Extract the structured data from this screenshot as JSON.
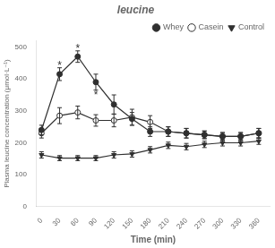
{
  "chart_data": {
    "type": "line",
    "title": "leucine",
    "x_label": "Time (min)",
    "y_label": "Plasma leucine concentration (μmol·L⁻¹)",
    "x": [
      0,
      30,
      60,
      90,
      120,
      150,
      180,
      210,
      240,
      270,
      300,
      330,
      360
    ],
    "series": [
      {
        "name": "Whey",
        "color": "#303030",
        "marker": "circle",
        "values": [
          240,
          415,
          470,
          390,
          320,
          275,
          235,
          235,
          230,
          225,
          220,
          220,
          230
        ],
        "errors": [
          15,
          20,
          18,
          25,
          30,
          20,
          15,
          15,
          15,
          12,
          12,
          12,
          15
        ]
      },
      {
        "name": "Casein",
        "color": "#303030",
        "marker": "open_circle",
        "values": [
          230,
          285,
          295,
          270,
          270,
          280,
          265,
          235,
          230,
          225,
          220,
          220,
          230
        ],
        "errors": [
          15,
          25,
          20,
          18,
          20,
          25,
          20,
          15,
          15,
          12,
          12,
          12,
          15
        ]
      },
      {
        "name": "Control",
        "color": "#303030",
        "marker": "triangle_down",
        "values": [
          162,
          152,
          152,
          152,
          162,
          165,
          178,
          192,
          188,
          195,
          200,
          200,
          205
        ],
        "errors": [
          10,
          8,
          8,
          8,
          10,
          10,
          10,
          10,
          10,
          10,
          10,
          10,
          10
        ]
      }
    ],
    "annotations": [
      {
        "text": "*",
        "x": 30,
        "y": 443
      },
      {
        "text": "*",
        "x": 60,
        "y": 496
      },
      {
        "text": "*",
        "x": 90,
        "y": 350
      }
    ],
    "xlim": [
      -8,
      378
    ],
    "xticks": [
      0,
      30,
      60,
      90,
      120,
      150,
      180,
      210,
      240,
      270,
      300,
      330,
      360
    ],
    "ylim": [
      0,
      520
    ],
    "yticks": [
      0,
      100,
      200,
      300,
      400,
      500
    ],
    "grid": false,
    "legend": "upper right"
  }
}
